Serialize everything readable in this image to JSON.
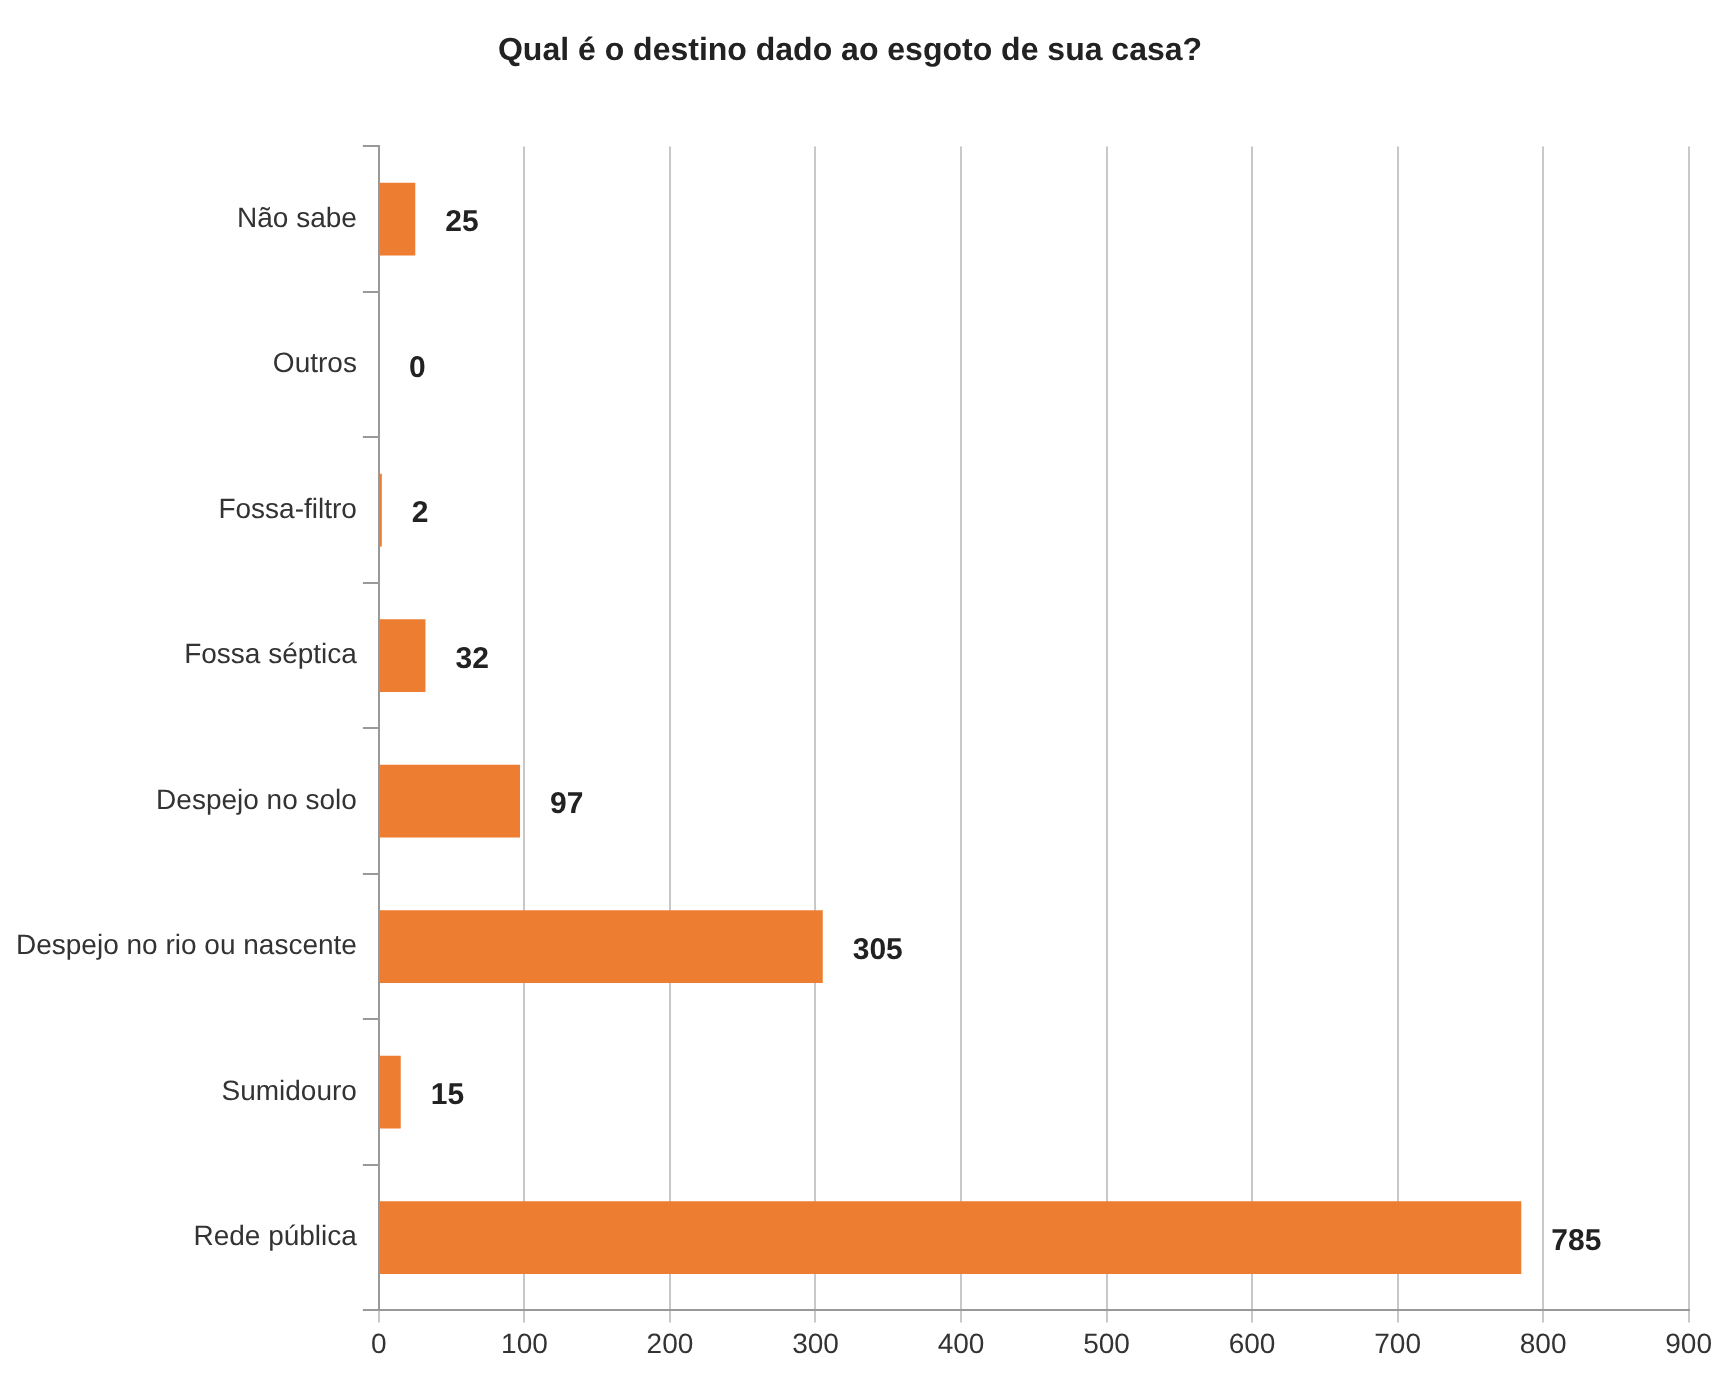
{
  "chart_data": {
    "type": "bar",
    "orientation": "horizontal",
    "title": "Qual é o destino dado ao esgoto de sua casa?",
    "categories": [
      "Não sabe",
      "Outros",
      "Fossa-filtro",
      "Fossa séptica",
      "Despejo no solo",
      "Despejo no rio ou nascente",
      "Sumidouro",
      "Rede pública"
    ],
    "values": [
      25,
      0,
      2,
      32,
      97,
      305,
      15,
      785
    ],
    "color": "#ed7d31",
    "xlim": [
      0,
      900
    ],
    "xticks": [
      0,
      100,
      200,
      300,
      400,
      500,
      600,
      700,
      800,
      900
    ],
    "grid": "x",
    "data_labels": true,
    "legend": false
  }
}
